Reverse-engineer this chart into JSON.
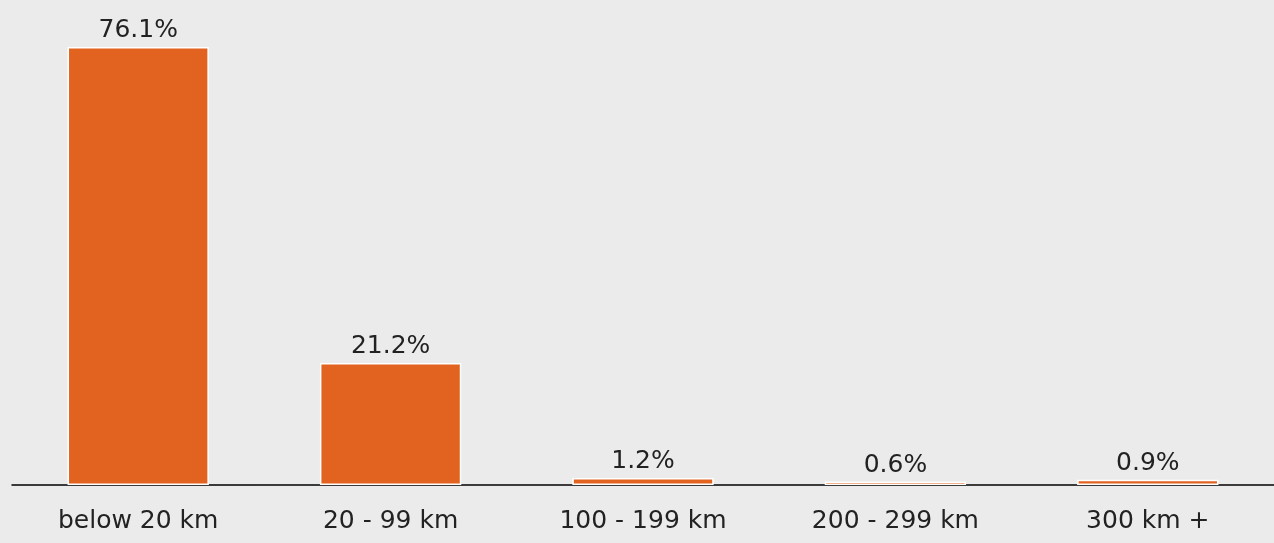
{
  "chart_data": {
    "type": "bar",
    "categories": [
      "below 20 km",
      "20 - 99 km",
      "100 - 199 km",
      "200 - 299 km",
      "300 km +"
    ],
    "values": [
      76.1,
      21.2,
      1.2,
      0.6,
      0.9
    ],
    "value_labels": [
      "76.1%",
      "21.2%",
      "1.2%",
      "0.6%",
      "0.9%"
    ],
    "color": "#e2621f"
  }
}
